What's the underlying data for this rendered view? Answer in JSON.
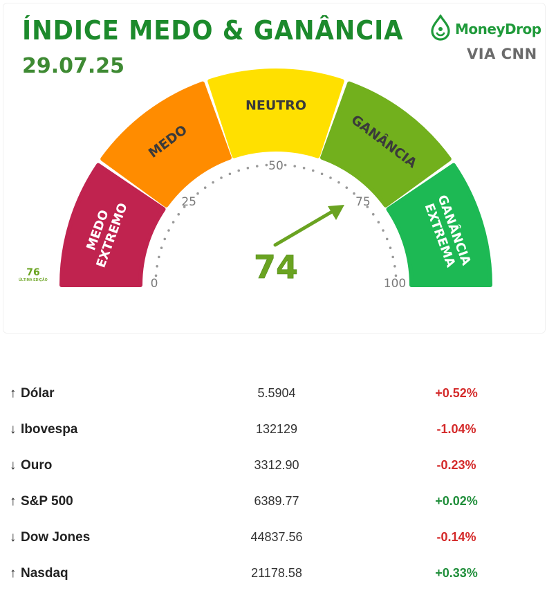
{
  "header": {
    "title": "ÍNDICE MEDO & GANÂNCIA",
    "date": "29.07.25",
    "brand": "MoneyDrop",
    "source": "VIA CNN",
    "brand_color": "#1f9a3a",
    "logo_icon": "water-drop-icon"
  },
  "gauge": {
    "current_value": "74",
    "current_value_number": 74,
    "previous_value": "76",
    "previous_label": "ÚLTIMA EDIÇÃO",
    "scale_labels": [
      "0",
      "25",
      "50",
      "75",
      "100"
    ],
    "segments": [
      {
        "line1": "MEDO",
        "line2": "EXTREMO",
        "color": "#c0234f"
      },
      {
        "line1": "MEDO",
        "line2": "",
        "color": "#ff8c00"
      },
      {
        "line1": "NEUTRO",
        "line2": "",
        "color": "#ffe000"
      },
      {
        "line1": "GANÂNCIA",
        "line2": "",
        "color": "#72b01d"
      },
      {
        "line1": "GANÂNCIA",
        "line2": "EXTREMA",
        "color": "#1db954"
      }
    ],
    "needle_color": "#6aa321"
  },
  "market": {
    "rows": [
      {
        "arrow": "↑",
        "name": "Dólar",
        "value": "5.5904",
        "change": "+0.52%",
        "status": "neg"
      },
      {
        "arrow": "↓",
        "name": "Ibovespa",
        "value": "132129",
        "change": "-1.04%",
        "status": "neg"
      },
      {
        "arrow": "↓",
        "name": "Ouro",
        "value": "3312.90",
        "change": "-0.23%",
        "status": "neg"
      },
      {
        "arrow": "↑",
        "name": "S&P 500",
        "value": "6389.77",
        "change": "+0.02%",
        "status": "pos"
      },
      {
        "arrow": "↓",
        "name": "Dow Jones",
        "value": "44837.56",
        "change": "-0.14%",
        "status": "neg"
      },
      {
        "arrow": "↑",
        "name": "Nasdaq",
        "value": "21178.58",
        "change": "+0.33%",
        "status": "pos"
      }
    ]
  }
}
